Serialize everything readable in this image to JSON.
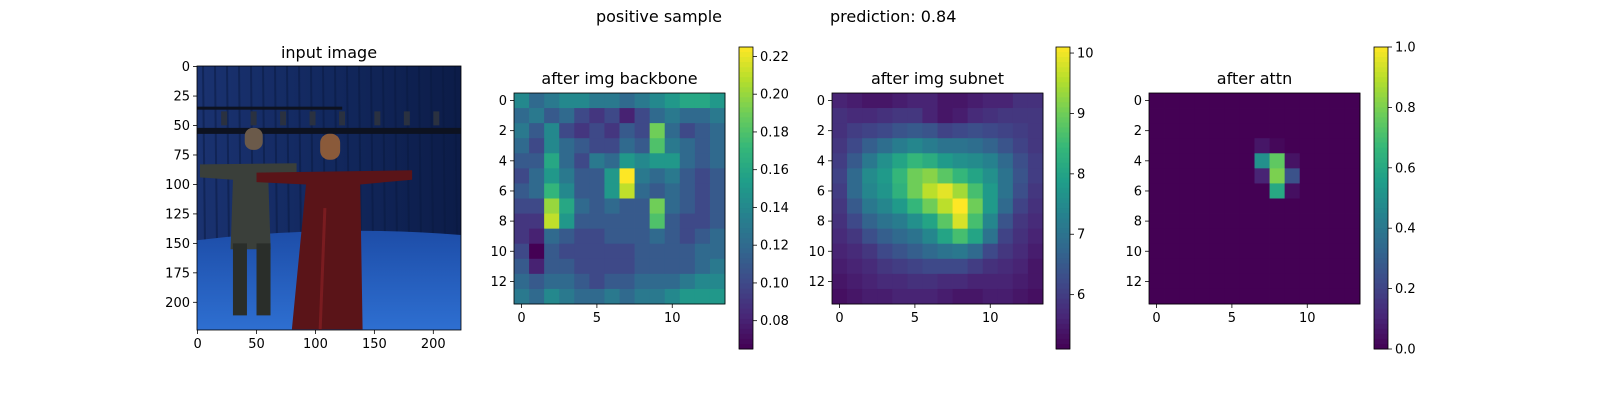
{
  "figure": {
    "title_left": "positive sample",
    "title_right": "prediction: 0.84"
  },
  "chart_data": [
    {
      "type": "image",
      "title": "input image",
      "xlim": [
        0,
        223
      ],
      "ylim": [
        223,
        0
      ],
      "xticks": [
        0,
        50,
        100,
        150,
        200
      ],
      "yticks": [
        0,
        25,
        50,
        75,
        100,
        125,
        150,
        175,
        200
      ],
      "scene": {
        "description_items": [
          "blue-screen studio",
          "two standing people with outstretched arms"
        ],
        "colors": {
          "backdrop": "#12285e",
          "floor": "#2e6fd1",
          "rig": "#0d1220",
          "person_left": "#3a3f3a",
          "person_right": "#5a1418"
        }
      }
    },
    {
      "type": "heatmap",
      "title": "after img backbone",
      "colormap": "viridis",
      "vmin": 0.065,
      "vmax": 0.225,
      "colorbar_ticks": [
        0.08,
        0.1,
        0.12,
        0.14,
        0.16,
        0.18,
        0.2,
        0.22
      ],
      "colorbar_tick_labels": [
        "0.08",
        "0.10",
        "0.12",
        "0.14",
        "0.16",
        "0.18",
        "0.20",
        "0.22"
      ],
      "xticks": [
        0,
        5,
        10
      ],
      "yticks": [
        0,
        2,
        4,
        6,
        8,
        10,
        12
      ],
      "grid": [
        [
          0.14,
          0.12,
          0.13,
          0.14,
          0.14,
          0.13,
          0.13,
          0.12,
          0.13,
          0.14,
          0.15,
          0.16,
          0.16,
          0.15
        ],
        [
          0.12,
          0.13,
          0.11,
          0.12,
          0.1,
          0.09,
          0.1,
          0.08,
          0.1,
          0.12,
          0.13,
          0.12,
          0.12,
          0.13
        ],
        [
          0.13,
          0.11,
          0.14,
          0.1,
          0.09,
          0.1,
          0.09,
          0.11,
          0.1,
          0.19,
          0.12,
          0.1,
          0.11,
          0.12
        ],
        [
          0.12,
          0.1,
          0.14,
          0.12,
          0.11,
          0.1,
          0.1,
          0.12,
          0.11,
          0.18,
          0.13,
          0.12,
          0.11,
          0.12
        ],
        [
          0.11,
          0.11,
          0.16,
          0.12,
          0.1,
          0.13,
          0.12,
          0.15,
          0.14,
          0.15,
          0.15,
          0.12,
          0.11,
          0.12
        ],
        [
          0.1,
          0.12,
          0.15,
          0.13,
          0.11,
          0.11,
          0.15,
          0.225,
          0.13,
          0.12,
          0.13,
          0.11,
          0.1,
          0.11
        ],
        [
          0.11,
          0.12,
          0.17,
          0.14,
          0.11,
          0.11,
          0.15,
          0.21,
          0.12,
          0.11,
          0.12,
          0.11,
          0.1,
          0.11
        ],
        [
          0.1,
          0.1,
          0.2,
          0.16,
          0.12,
          0.11,
          0.12,
          0.11,
          0.11,
          0.19,
          0.12,
          0.11,
          0.1,
          0.11
        ],
        [
          0.09,
          0.09,
          0.21,
          0.15,
          0.11,
          0.11,
          0.11,
          0.11,
          0.11,
          0.18,
          0.11,
          0.1,
          0.1,
          0.11
        ],
        [
          0.09,
          0.08,
          0.12,
          0.11,
          0.1,
          0.1,
          0.11,
          0.11,
          0.11,
          0.12,
          0.11,
          0.1,
          0.11,
          0.12
        ],
        [
          0.1,
          0.065,
          0.11,
          0.1,
          0.1,
          0.1,
          0.1,
          0.1,
          0.11,
          0.11,
          0.11,
          0.11,
          0.12,
          0.12
        ],
        [
          0.11,
          0.08,
          0.11,
          0.11,
          0.1,
          0.1,
          0.1,
          0.1,
          0.11,
          0.11,
          0.11,
          0.11,
          0.12,
          0.13
        ],
        [
          0.12,
          0.11,
          0.12,
          0.12,
          0.11,
          0.1,
          0.11,
          0.11,
          0.12,
          0.12,
          0.12,
          0.13,
          0.14,
          0.14
        ],
        [
          0.13,
          0.12,
          0.14,
          0.13,
          0.12,
          0.12,
          0.13,
          0.12,
          0.13,
          0.13,
          0.14,
          0.15,
          0.15,
          0.15
        ]
      ]
    },
    {
      "type": "heatmap",
      "title": "after img subnet",
      "colormap": "viridis",
      "vmin": 5.1,
      "vmax": 10.1,
      "colorbar_ticks": [
        6,
        7,
        8,
        9,
        10
      ],
      "colorbar_tick_labels": [
        "6",
        "7",
        "8",
        "9",
        "10"
      ],
      "xticks": [
        0,
        5,
        10
      ],
      "yticks": [
        0,
        2,
        4,
        6,
        8,
        10,
        12
      ],
      "grid": [
        [
          5.6,
          5.5,
          5.4,
          5.4,
          5.5,
          5.6,
          5.6,
          5.4,
          5.4,
          5.5,
          5.6,
          5.6,
          5.8,
          5.8
        ],
        [
          5.8,
          5.7,
          5.7,
          5.8,
          5.9,
          5.9,
          5.6,
          5.4,
          5.5,
          5.7,
          5.8,
          5.9,
          5.9,
          5.9
        ],
        [
          5.8,
          6.0,
          6.1,
          6.2,
          6.4,
          6.5,
          6.4,
          6.1,
          6.2,
          6.3,
          6.2,
          6.1,
          6.0,
          5.9
        ],
        [
          5.9,
          6.2,
          6.6,
          6.9,
          7.2,
          7.4,
          7.2,
          7.0,
          7.0,
          6.9,
          6.7,
          6.4,
          6.1,
          5.9
        ],
        [
          6.0,
          6.5,
          7.1,
          7.6,
          8.0,
          8.4,
          8.2,
          7.8,
          7.6,
          7.5,
          7.3,
          6.8,
          6.3,
          6.0
        ],
        [
          6.1,
          6.8,
          7.5,
          7.8,
          8.4,
          9.0,
          9.2,
          8.8,
          8.4,
          8.0,
          7.6,
          7.0,
          6.4,
          6.0
        ],
        [
          6.0,
          6.8,
          7.4,
          7.7,
          8.3,
          9.0,
          9.6,
          9.9,
          9.4,
          8.6,
          7.8,
          7.0,
          6.3,
          5.9
        ],
        [
          5.9,
          6.5,
          7.1,
          7.4,
          7.8,
          8.4,
          9.0,
          9.6,
          10.1,
          9.0,
          7.8,
          6.8,
          6.1,
          5.8
        ],
        [
          5.8,
          6.2,
          6.7,
          7.0,
          7.2,
          7.6,
          8.0,
          8.8,
          9.8,
          8.6,
          7.4,
          6.4,
          5.9,
          5.7
        ],
        [
          5.7,
          5.9,
          6.3,
          6.6,
          6.8,
          7.0,
          7.4,
          8.0,
          8.6,
          8.0,
          7.0,
          6.1,
          5.8,
          5.6
        ],
        [
          5.6,
          5.7,
          5.9,
          6.2,
          6.4,
          6.6,
          6.8,
          7.0,
          7.1,
          6.8,
          6.2,
          5.9,
          5.7,
          5.5
        ],
        [
          5.5,
          5.6,
          5.7,
          5.9,
          6.0,
          6.1,
          6.2,
          6.2,
          6.2,
          6.0,
          5.8,
          5.7,
          5.6,
          5.4
        ],
        [
          5.4,
          5.5,
          5.6,
          5.7,
          5.7,
          5.8,
          5.8,
          5.7,
          5.7,
          5.6,
          5.6,
          5.6,
          5.5,
          5.4
        ],
        [
          5.3,
          5.4,
          5.5,
          5.5,
          5.6,
          5.6,
          5.6,
          5.5,
          5.4,
          5.4,
          5.5,
          5.5,
          5.4,
          5.3
        ]
      ]
    },
    {
      "type": "heatmap",
      "title": "after attn",
      "colormap": "viridis",
      "vmin": 0.0,
      "vmax": 1.0,
      "colorbar_ticks": [
        0.0,
        0.2,
        0.4,
        0.6,
        0.8,
        1.0
      ],
      "colorbar_tick_labels": [
        "0.0",
        "0.2",
        "0.4",
        "0.6",
        "0.8",
        "1.0"
      ],
      "xticks": [
        0,
        5,
        10
      ],
      "yticks": [
        0,
        2,
        4,
        6,
        8,
        10,
        12
      ],
      "grid": [
        [
          0,
          0,
          0,
          0,
          0,
          0,
          0,
          0,
          0,
          0,
          0,
          0,
          0,
          0
        ],
        [
          0,
          0,
          0,
          0,
          0,
          0,
          0,
          0,
          0,
          0,
          0,
          0,
          0,
          0
        ],
        [
          0,
          0,
          0,
          0,
          0,
          0,
          0,
          0,
          0,
          0,
          0,
          0,
          0,
          0
        ],
        [
          0,
          0,
          0,
          0,
          0,
          0,
          0,
          0.06,
          0.02,
          0,
          0,
          0,
          0,
          0
        ],
        [
          0,
          0,
          0,
          0,
          0,
          0,
          0,
          0.5,
          0.75,
          0.05,
          0,
          0,
          0,
          0
        ],
        [
          0,
          0,
          0,
          0,
          0,
          0,
          0,
          0.1,
          0.8,
          0.25,
          0,
          0,
          0,
          0
        ],
        [
          0,
          0,
          0,
          0,
          0,
          0,
          0,
          0,
          0.6,
          0.04,
          0,
          0,
          0,
          0
        ],
        [
          0,
          0,
          0,
          0,
          0,
          0,
          0,
          0,
          0,
          0,
          0,
          0,
          0,
          0
        ],
        [
          0,
          0,
          0,
          0,
          0,
          0,
          0,
          0,
          0,
          0,
          0,
          0,
          0,
          0
        ],
        [
          0,
          0,
          0,
          0,
          0,
          0,
          0,
          0,
          0,
          0,
          0,
          0,
          0,
          0
        ],
        [
          0,
          0,
          0,
          0,
          0,
          0,
          0,
          0,
          0,
          0,
          0,
          0,
          0,
          0
        ],
        [
          0,
          0,
          0,
          0,
          0,
          0,
          0,
          0,
          0,
          0,
          0,
          0,
          0,
          0
        ],
        [
          0,
          0,
          0,
          0,
          0,
          0,
          0,
          0,
          0,
          0,
          0,
          0,
          0,
          0
        ],
        [
          0,
          0,
          0,
          0,
          0,
          0,
          0,
          0,
          0,
          0,
          0,
          0,
          0,
          0
        ]
      ]
    }
  ]
}
